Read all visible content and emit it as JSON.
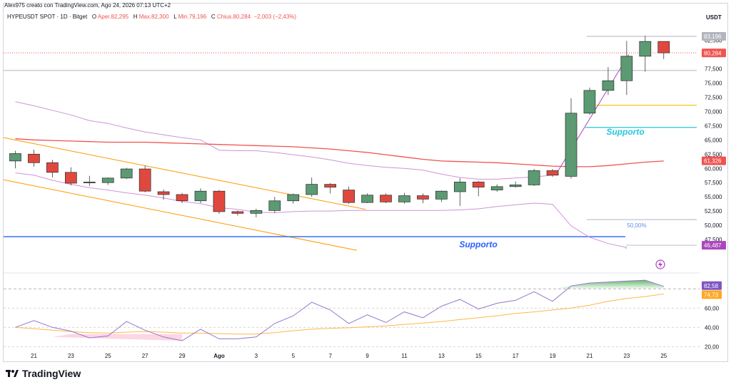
{
  "header": {
    "author_line": "Alex975 creato con TradingView.com, Ago 24, 2026 07:13 UTC+2"
  },
  "symbol_bar": {
    "name": "HYPEUSDT SPOT · 1D · Bitget",
    "open_label": "O",
    "open_value": "Aper.82,295",
    "high_label": "H",
    "high_value": "Max.82,300",
    "low_label": "L",
    "low_value": "Min.79,196",
    "close_label": "C",
    "close_value": "Chius.80,284",
    "change_value": "−2,003 (−2,43%)"
  },
  "axis": {
    "currency": "USDT"
  },
  "brand": {
    "name": "TradingView"
  },
  "annotations": {
    "support_upper": "Supporto",
    "support_lower": "Supporto",
    "fib_level": "50,00%"
  },
  "price_badges": [
    {
      "label": "83,196",
      "color": "#b2b5be",
      "text_color": "#ffffff",
      "value": 83.196
    },
    {
      "label": "80,284",
      "color": "#ef5350",
      "text_color": "#ffffff",
      "value": 80.284
    },
    {
      "label": "61,326",
      "color": "#ef5350",
      "text_color": "#ffffff",
      "value": 61.326
    },
    {
      "label": "46,487",
      "color": "#ab47bc",
      "text_color": "#ffffff",
      "value": 46.487
    }
  ],
  "rsi_badges": [
    {
      "label": "82,58",
      "color": "#7e57c2",
      "value": 82.58
    },
    {
      "label": "74,73",
      "color": "#ffa726",
      "value": 74.73
    }
  ],
  "colors": {
    "up": "#5b9a73",
    "down": "#e0483e",
    "ma": "#ef5350",
    "bollinger": "#ce93d8",
    "channel": "#ff9800",
    "support_line": "#2962ff",
    "support_text_upper": "#26c6da",
    "support_text_lower": "#2962ff",
    "rsi": "#9575cd",
    "rsi_ma": "#ffb74d",
    "yellow_line": "#f5c518"
  },
  "chart_data": [
    {
      "type": "candlestick",
      "title": "HYPEUSDT SPOT · 1D · Bitget",
      "y_unit": "USDT",
      "ylim": [
        42.0,
        85.2
      ],
      "y_ticks": [
        "82,500",
        "80,000",
        "77,500",
        "75,000",
        "72,500",
        "70,000",
        "67,500",
        "65,000",
        "62,500",
        "60,000",
        "57,500",
        "55,000",
        "52,500",
        "50,000",
        "47,500"
      ],
      "x_ticks": [
        "21",
        "23",
        "25",
        "27",
        "29",
        "Ago",
        "3",
        "5",
        "7",
        "9",
        "11",
        "13",
        "15",
        "17",
        "19",
        "21",
        "23",
        "25"
      ],
      "candles": [
        {
          "date": "Jul 21",
          "o": 61.3,
          "h": 63.1,
          "l": 60.0,
          "c": 62.6
        },
        {
          "date": "Jul 22",
          "o": 62.5,
          "h": 63.3,
          "l": 60.3,
          "c": 61.0
        },
        {
          "date": "Jul 23",
          "o": 61.0,
          "h": 61.5,
          "l": 58.4,
          "c": 59.3
        },
        {
          "date": "Jul 24",
          "o": 59.3,
          "h": 60.2,
          "l": 57.0,
          "c": 57.4
        },
        {
          "date": "Jul 25",
          "o": 57.5,
          "h": 58.7,
          "l": 56.9,
          "c": 57.6
        },
        {
          "date": "Jul 26",
          "o": 57.5,
          "h": 58.4,
          "l": 57.1,
          "c": 58.3
        },
        {
          "date": "Jul 27",
          "o": 58.3,
          "h": 60.1,
          "l": 58.1,
          "c": 59.9
        },
        {
          "date": "Jul 28",
          "o": 59.9,
          "h": 60.5,
          "l": 55.8,
          "c": 56.0
        },
        {
          "date": "Jul 29",
          "o": 55.9,
          "h": 56.3,
          "l": 54.5,
          "c": 55.4
        },
        {
          "date": "Jul 30",
          "o": 55.4,
          "h": 55.7,
          "l": 53.9,
          "c": 54.3
        },
        {
          "date": "Jul 31",
          "o": 54.3,
          "h": 56.5,
          "l": 53.9,
          "c": 56.0
        },
        {
          "date": "Ago 1",
          "o": 56.0,
          "h": 56.2,
          "l": 52.0,
          "c": 52.4
        },
        {
          "date": "Ago 2",
          "o": 52.4,
          "h": 52.6,
          "l": 51.7,
          "c": 52.1
        },
        {
          "date": "Ago 3",
          "o": 52.1,
          "h": 52.9,
          "l": 51.4,
          "c": 52.6
        },
        {
          "date": "Ago 4",
          "o": 52.6,
          "h": 55.0,
          "l": 52.2,
          "c": 54.3
        },
        {
          "date": "Ago 5",
          "o": 54.3,
          "h": 55.6,
          "l": 53.8,
          "c": 55.4
        },
        {
          "date": "Ago 6",
          "o": 55.4,
          "h": 58.4,
          "l": 55.0,
          "c": 57.2
        },
        {
          "date": "Ago 7",
          "o": 57.2,
          "h": 57.4,
          "l": 55.6,
          "c": 56.7
        },
        {
          "date": "Ago 8",
          "o": 56.2,
          "h": 56.8,
          "l": 53.8,
          "c": 54.0
        },
        {
          "date": "Ago 9",
          "o": 54.0,
          "h": 55.6,
          "l": 53.9,
          "c": 55.3
        },
        {
          "date": "Ago 10",
          "o": 55.3,
          "h": 55.6,
          "l": 53.9,
          "c": 54.1
        },
        {
          "date": "Ago 11",
          "o": 54.1,
          "h": 55.7,
          "l": 53.8,
          "c": 55.2
        },
        {
          "date": "Ago 12",
          "o": 55.2,
          "h": 55.6,
          "l": 53.9,
          "c": 54.6
        },
        {
          "date": "Ago 13",
          "o": 54.6,
          "h": 56.1,
          "l": 54.1,
          "c": 56.0
        },
        {
          "date": "Ago 14",
          "o": 55.9,
          "h": 58.3,
          "l": 53.4,
          "c": 57.6
        },
        {
          "date": "Ago 15",
          "o": 57.6,
          "h": 57.8,
          "l": 55.1,
          "c": 56.7
        },
        {
          "date": "Ago 16",
          "o": 56.2,
          "h": 57.2,
          "l": 55.9,
          "c": 56.8
        },
        {
          "date": "Ago 17",
          "o": 56.8,
          "h": 57.7,
          "l": 56.6,
          "c": 57.1
        },
        {
          "date": "Ago 18",
          "o": 57.1,
          "h": 59.9,
          "l": 56.9,
          "c": 59.6
        },
        {
          "date": "Ago 19",
          "o": 59.6,
          "h": 59.9,
          "l": 58.5,
          "c": 58.8
        },
        {
          "date": "Ago 20",
          "o": 58.6,
          "h": 72.3,
          "l": 58.2,
          "c": 69.7
        },
        {
          "date": "Ago 21",
          "o": 69.7,
          "h": 74.2,
          "l": 69.4,
          "c": 73.7
        },
        {
          "date": "Ago 22",
          "o": 73.7,
          "h": 77.8,
          "l": 72.9,
          "c": 75.4
        },
        {
          "date": "Ago 23",
          "o": 75.4,
          "h": 82.4,
          "l": 72.9,
          "c": 79.7
        },
        {
          "date": "Ago 24",
          "o": 79.7,
          "h": 83.3,
          "l": 77.0,
          "c": 82.3
        },
        {
          "date": "Ago 25",
          "o": 82.3,
          "h": 82.3,
          "l": 79.2,
          "c": 80.3
        }
      ],
      "moving_average": [
        65.2,
        65.0,
        64.9,
        64.8,
        64.7,
        64.6,
        64.6,
        64.6,
        64.5,
        64.4,
        64.3,
        64.2,
        64.1,
        64.0,
        63.9,
        63.8,
        63.6,
        63.4,
        63.1,
        62.8,
        62.4,
        62.0,
        61.6,
        61.3,
        61.2,
        61.1,
        61.0,
        60.8,
        60.6,
        60.4,
        60.3,
        60.3,
        60.5,
        60.8,
        61.1,
        61.3
      ],
      "bollinger_upper": [
        71.7,
        71.0,
        70.2,
        69.4,
        68.4,
        67.9,
        67.1,
        66.4,
        65.9,
        65.4,
        65.0,
        63.2,
        63.1,
        63.1,
        62.8,
        62.4,
        62.0,
        61.5,
        60.9,
        60.5,
        60.2,
        60.0,
        59.7,
        59.0,
        58.4,
        58.1,
        58.1,
        58.3,
        58.5,
        58.8,
        null,
        null,
        null,
        null,
        null,
        null
      ],
      "bollinger_lower": [
        59.2,
        58.8,
        57.9,
        57.2,
        56.6,
        56.2,
        55.7,
        55.3,
        54.8,
        54.2,
        53.8,
        53.1,
        52.8,
        52.3,
        52.2,
        52.4,
        52.5,
        52.5,
        52.6,
        52.6,
        52.6,
        52.6,
        52.6,
        52.6,
        52.7,
        52.9,
        53.3,
        53.6,
        53.9,
        53.7,
        49.9,
        47.9,
        46.8,
        46.1,
        null,
        null
      ],
      "support_level": 48.0,
      "rsi": {
        "title": "RSI",
        "ylim": [
          15,
          95
        ],
        "y_ticks": [
          "60,00",
          "40,00",
          "20,00"
        ],
        "values": [
          40.0,
          47.0,
          40.0,
          36.0,
          29.0,
          31.0,
          46.0,
          37.0,
          30.0,
          26.0,
          38.0,
          28.0,
          28.0,
          30.0,
          44.0,
          52.0,
          66.0,
          58.0,
          44.0,
          53.0,
          45.0,
          56.0,
          50.0,
          62.0,
          69.0,
          59.0,
          65.0,
          68.0,
          77.0,
          67.0,
          83.0,
          86.0,
          87.0,
          88.0,
          89.0,
          82.58
        ],
        "ma_values": [
          40.0,
          38.5,
          37.0,
          35.5,
          34.5,
          34.0,
          35.0,
          35.5,
          35.0,
          34.0,
          34.0,
          33.5,
          33.0,
          33.0,
          34.5,
          36.5,
          38.0,
          39.0,
          39.5,
          40.5,
          41.5,
          43.0,
          44.5,
          46.0,
          48.0,
          50.0,
          52.0,
          54.5,
          56.0,
          58.0,
          60.0,
          63.0,
          67.0,
          70.0,
          72.0,
          74.73
        ]
      }
    }
  ]
}
